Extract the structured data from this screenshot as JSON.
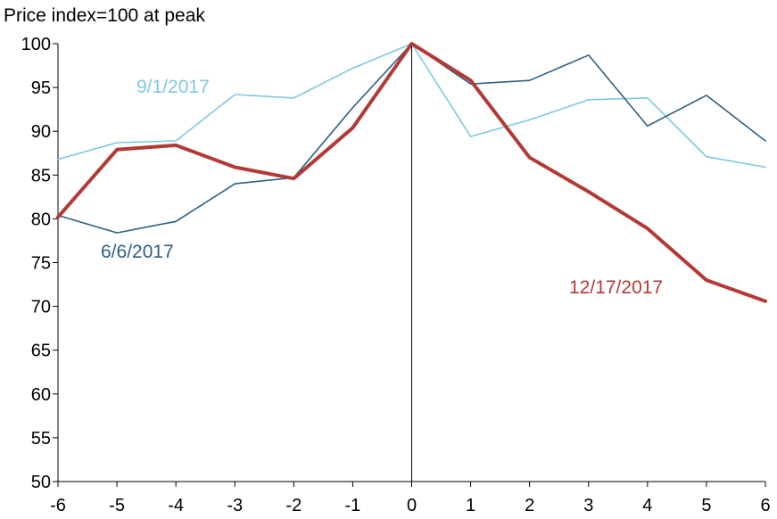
{
  "chart_data": {
    "type": "line",
    "title": "",
    "ylabel": "Price index=100 at peak",
    "xlabel": "",
    "x": [
      -6,
      -5,
      -4,
      -3,
      -2,
      -1,
      0,
      1,
      2,
      3,
      4,
      5,
      6
    ],
    "x_tick_labels": [
      "-6",
      "-5",
      "-4",
      "-3",
      "-2",
      "-1",
      "0",
      "1",
      "2",
      "3",
      "4",
      "5",
      "6"
    ],
    "y_tick_labels": [
      "50",
      "55",
      "60",
      "65",
      "70",
      "75",
      "80",
      "85",
      "90",
      "95",
      "100"
    ],
    "ylim": [
      50,
      100
    ],
    "xlim": [
      -6,
      6
    ],
    "grid": false,
    "legend": "none (series labeled directly on chart)",
    "reference_line_x": 0,
    "series": [
      {
        "name": "9/1/2017",
        "color": "#7ec8dc",
        "values": [
          86.8,
          88.7,
          88.9,
          94.2,
          93.8,
          97.2,
          100,
          89.4,
          91.3,
          93.6,
          93.8,
          87.1,
          85.9
        ]
      },
      {
        "name": "6/6/2017",
        "color": "#2e5f83",
        "values": [
          80.4,
          78.4,
          79.7,
          84.0,
          84.7,
          92.7,
          100,
          95.4,
          95.8,
          98.7,
          90.6,
          94.1,
          88.9
        ]
      },
      {
        "name": "12/17/2017",
        "color": "#b23a36",
        "values": [
          80.2,
          87.9,
          88.4,
          85.9,
          84.6,
          90.4,
          100,
          95.8,
          87.0,
          83.1,
          78.9,
          73.0,
          70.6
        ]
      }
    ]
  }
}
